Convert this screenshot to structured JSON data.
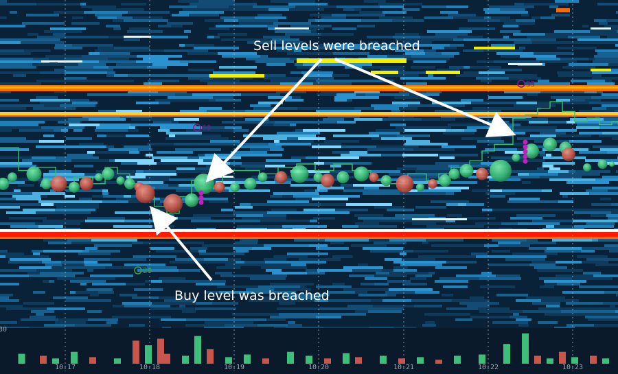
{
  "chart_data": {
    "type": "heatmap",
    "subtitle": "",
    "x_axis": {
      "ticks": [
        "10:17",
        "10:18",
        "10:19",
        "10:20",
        "10:21",
        "10:22",
        "10:23"
      ]
    },
    "y_partial_label": "30",
    "annotations": [
      {
        "text": "Sell levels were breached"
      },
      {
        "text": "Buy level was breached"
      }
    ],
    "markers": [
      {
        "text": "60",
        "color": "#7a1a8a"
      },
      {
        "text": "29",
        "color": "#3aa03a"
      },
      {
        "text": "35",
        "color": "#7a1a8a"
      }
    ],
    "colors": {
      "background": "#0b1a2a",
      "liquidity_low": "#0e3a5c",
      "liquidity_mid": "#1f7fb8",
      "liquidity_high": "#7fd6ff",
      "level_strong": "#ff6a00",
      "level_hot": "#ff1a00",
      "level_yellow": "#f4f000",
      "buy_bubble": "#3dbf7a",
      "sell_bubble": "#c8564a",
      "volume_buy": "#3dbf7a",
      "volume_sell": "#c8564a",
      "price_line": "#37c06a"
    },
    "price_path": [
      [
        0,
        0.45
      ],
      [
        0.03,
        0.52
      ],
      [
        0.06,
        0.51
      ],
      [
        0.09,
        0.57
      ],
      [
        0.12,
        0.54
      ],
      [
        0.15,
        0.56
      ],
      [
        0.17,
        0.51
      ],
      [
        0.19,
        0.53
      ],
      [
        0.21,
        0.56
      ],
      [
        0.23,
        0.6
      ],
      [
        0.25,
        0.63
      ],
      [
        0.27,
        0.65
      ],
      [
        0.29,
        0.6
      ],
      [
        0.31,
        0.55
      ],
      [
        0.33,
        0.57
      ],
      [
        0.36,
        0.52
      ],
      [
        0.39,
        0.52
      ],
      [
        0.42,
        0.53
      ],
      [
        0.45,
        0.51
      ],
      [
        0.48,
        0.5
      ],
      [
        0.51,
        0.52
      ],
      [
        0.54,
        0.5
      ],
      [
        0.57,
        0.52
      ],
      [
        0.6,
        0.55
      ],
      [
        0.63,
        0.56
      ],
      [
        0.66,
        0.53
      ],
      [
        0.69,
        0.55
      ],
      [
        0.71,
        0.53
      ],
      [
        0.73,
        0.51
      ],
      [
        0.76,
        0.49
      ],
      [
        0.78,
        0.46
      ],
      [
        0.8,
        0.44
      ],
      [
        0.83,
        0.36
      ],
      [
        0.85,
        0.35
      ],
      [
        0.87,
        0.33
      ],
      [
        0.89,
        0.31
      ],
      [
        0.91,
        0.34
      ],
      [
        0.93,
        0.37
      ],
      [
        0.95,
        0.36
      ],
      [
        0.97,
        0.38
      ],
      [
        0.99,
        0.37
      ],
      [
        1.0,
        0.38
      ]
    ],
    "bubbles": [
      {
        "t": 0.005,
        "p": 0.46,
        "r": 9,
        "side": "buy"
      },
      {
        "t": 0.02,
        "p": 0.44,
        "r": 7,
        "side": "buy"
      },
      {
        "t": 0.055,
        "p": 0.43,
        "r": 11,
        "side": "buy"
      },
      {
        "t": 0.075,
        "p": 0.46,
        "r": 8,
        "side": "buy"
      },
      {
        "t": 0.095,
        "p": 0.46,
        "r": 12,
        "side": "sell"
      },
      {
        "t": 0.12,
        "p": 0.47,
        "r": 8,
        "side": "buy"
      },
      {
        "t": 0.14,
        "p": 0.46,
        "r": 10,
        "side": "sell"
      },
      {
        "t": 0.16,
        "p": 0.44,
        "r": 6,
        "side": "buy"
      },
      {
        "t": 0.175,
        "p": 0.43,
        "r": 9,
        "side": "buy"
      },
      {
        "t": 0.195,
        "p": 0.45,
        "r": 6,
        "side": "buy"
      },
      {
        "t": 0.21,
        "p": 0.46,
        "r": 8,
        "side": "buy"
      },
      {
        "t": 0.225,
        "p": 0.47,
        "r": 7,
        "side": "sell"
      },
      {
        "t": 0.235,
        "p": 0.49,
        "r": 14,
        "side": "sell"
      },
      {
        "t": 0.28,
        "p": 0.52,
        "r": 14,
        "side": "sell"
      },
      {
        "t": 0.31,
        "p": 0.51,
        "r": 10,
        "side": "buy"
      },
      {
        "t": 0.33,
        "p": 0.46,
        "r": 15,
        "side": "buy"
      },
      {
        "t": 0.355,
        "p": 0.47,
        "r": 8,
        "side": "sell"
      },
      {
        "t": 0.38,
        "p": 0.47,
        "r": 7,
        "side": "buy"
      },
      {
        "t": 0.405,
        "p": 0.46,
        "r": 9,
        "side": "buy"
      },
      {
        "t": 0.425,
        "p": 0.44,
        "r": 7,
        "side": "buy"
      },
      {
        "t": 0.455,
        "p": 0.44,
        "r": 9,
        "side": "sell"
      },
      {
        "t": 0.485,
        "p": 0.43,
        "r": 13,
        "side": "buy"
      },
      {
        "t": 0.515,
        "p": 0.44,
        "r": 7,
        "side": "buy"
      },
      {
        "t": 0.53,
        "p": 0.45,
        "r": 10,
        "side": "sell"
      },
      {
        "t": 0.555,
        "p": 0.44,
        "r": 9,
        "side": "buy"
      },
      {
        "t": 0.585,
        "p": 0.43,
        "r": 11,
        "side": "buy"
      },
      {
        "t": 0.605,
        "p": 0.44,
        "r": 7,
        "side": "sell"
      },
      {
        "t": 0.625,
        "p": 0.45,
        "r": 8,
        "side": "buy"
      },
      {
        "t": 0.655,
        "p": 0.46,
        "r": 13,
        "side": "sell"
      },
      {
        "t": 0.68,
        "p": 0.47,
        "r": 6,
        "side": "buy"
      },
      {
        "t": 0.7,
        "p": 0.46,
        "r": 7,
        "side": "sell"
      },
      {
        "t": 0.72,
        "p": 0.45,
        "r": 9,
        "side": "buy"
      },
      {
        "t": 0.735,
        "p": 0.43,
        "r": 8,
        "side": "buy"
      },
      {
        "t": 0.755,
        "p": 0.42,
        "r": 10,
        "side": "buy"
      },
      {
        "t": 0.78,
        "p": 0.43,
        "r": 9,
        "side": "sell"
      },
      {
        "t": 0.81,
        "p": 0.42,
        "r": 16,
        "side": "buy"
      },
      {
        "t": 0.835,
        "p": 0.38,
        "r": 6,
        "side": "buy"
      },
      {
        "t": 0.86,
        "p": 0.36,
        "r": 11,
        "side": "buy"
      },
      {
        "t": 0.89,
        "p": 0.34,
        "r": 10,
        "side": "buy"
      },
      {
        "t": 0.915,
        "p": 0.35,
        "r": 9,
        "side": "buy"
      },
      {
        "t": 0.92,
        "p": 0.37,
        "r": 10,
        "side": "sell"
      },
      {
        "t": 0.95,
        "p": 0.41,
        "r": 6,
        "side": "buy"
      },
      {
        "t": 0.975,
        "p": 0.4,
        "r": 7,
        "side": "buy"
      },
      {
        "t": 0.99,
        "p": 0.4,
        "r": 4,
        "side": "buy"
      }
    ],
    "volume_bars": [
      {
        "t": 0.035,
        "v": 0.15,
        "side": "buy"
      },
      {
        "t": 0.07,
        "v": 0.12,
        "side": "sell"
      },
      {
        "t": 0.09,
        "v": 0.08,
        "side": "buy"
      },
      {
        "t": 0.12,
        "v": 0.18,
        "side": "buy"
      },
      {
        "t": 0.15,
        "v": 0.1,
        "side": "sell"
      },
      {
        "t": 0.19,
        "v": 0.08,
        "side": "buy"
      },
      {
        "t": 0.22,
        "v": 0.35,
        "side": "sell"
      },
      {
        "t": 0.24,
        "v": 0.28,
        "side": "buy"
      },
      {
        "t": 0.26,
        "v": 0.38,
        "side": "sell"
      },
      {
        "t": 0.27,
        "v": 0.15,
        "side": "sell"
      },
      {
        "t": 0.3,
        "v": 0.12,
        "side": "buy"
      },
      {
        "t": 0.32,
        "v": 0.42,
        "side": "buy"
      },
      {
        "t": 0.34,
        "v": 0.22,
        "side": "sell"
      },
      {
        "t": 0.37,
        "v": 0.1,
        "side": "buy"
      },
      {
        "t": 0.4,
        "v": 0.14,
        "side": "buy"
      },
      {
        "t": 0.43,
        "v": 0.08,
        "side": "sell"
      },
      {
        "t": 0.47,
        "v": 0.18,
        "side": "buy"
      },
      {
        "t": 0.5,
        "v": 0.12,
        "side": "buy"
      },
      {
        "t": 0.53,
        "v": 0.08,
        "side": "sell"
      },
      {
        "t": 0.56,
        "v": 0.16,
        "side": "buy"
      },
      {
        "t": 0.58,
        "v": 0.1,
        "side": "sell"
      },
      {
        "t": 0.62,
        "v": 0.12,
        "side": "buy"
      },
      {
        "t": 0.65,
        "v": 0.08,
        "side": "sell"
      },
      {
        "t": 0.68,
        "v": 0.1,
        "side": "buy"
      },
      {
        "t": 0.71,
        "v": 0.06,
        "side": "sell"
      },
      {
        "t": 0.74,
        "v": 0.12,
        "side": "buy"
      },
      {
        "t": 0.78,
        "v": 0.14,
        "side": "buy"
      },
      {
        "t": 0.82,
        "v": 0.3,
        "side": "buy"
      },
      {
        "t": 0.85,
        "v": 0.46,
        "side": "buy"
      },
      {
        "t": 0.87,
        "v": 0.12,
        "side": "sell"
      },
      {
        "t": 0.89,
        "v": 0.08,
        "side": "buy"
      },
      {
        "t": 0.91,
        "v": 0.18,
        "side": "sell"
      },
      {
        "t": 0.93,
        "v": 0.1,
        "side": "buy"
      },
      {
        "t": 0.96,
        "v": 0.12,
        "side": "sell"
      },
      {
        "t": 0.98,
        "v": 0.08,
        "side": "buy"
      }
    ]
  }
}
